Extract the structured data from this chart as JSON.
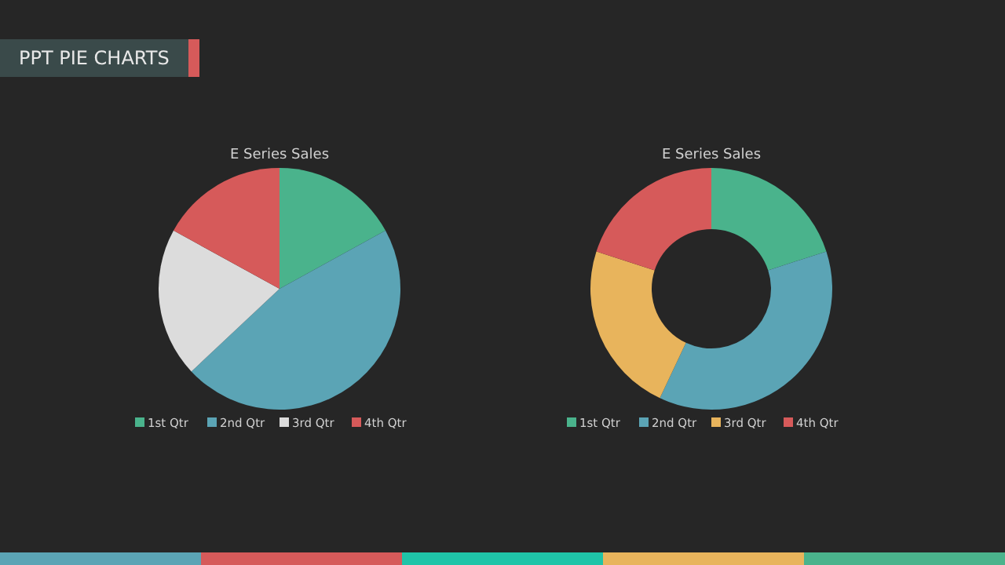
{
  "chart_data": [
    {
      "type": "pie",
      "title": "E Series Sales",
      "annotations": [
        "PPT PIE CHARTS"
      ],
      "categories": [
        "1st Qtr",
        "2nd Qtr",
        "3rd Qtr",
        "4th Qtr"
      ],
      "values": [
        17,
        46,
        20,
        17
      ],
      "colors": [
        "#4ab38c",
        "#5ba4b5",
        "#dcdcdc",
        "#d65a5a"
      ],
      "legend": "bottom"
    },
    {
      "type": "donut",
      "title": "E Series Sales",
      "categories": [
        "1st Qtr",
        "2nd Qtr",
        "3rd Qtr",
        "4th Qtr"
      ],
      "values": [
        20,
        37,
        23,
        20
      ],
      "colors": [
        "#4ab38c",
        "#5ba4b5",
        "#e8b45c",
        "#d65a5a"
      ],
      "legend": "bottom"
    }
  ]
}
